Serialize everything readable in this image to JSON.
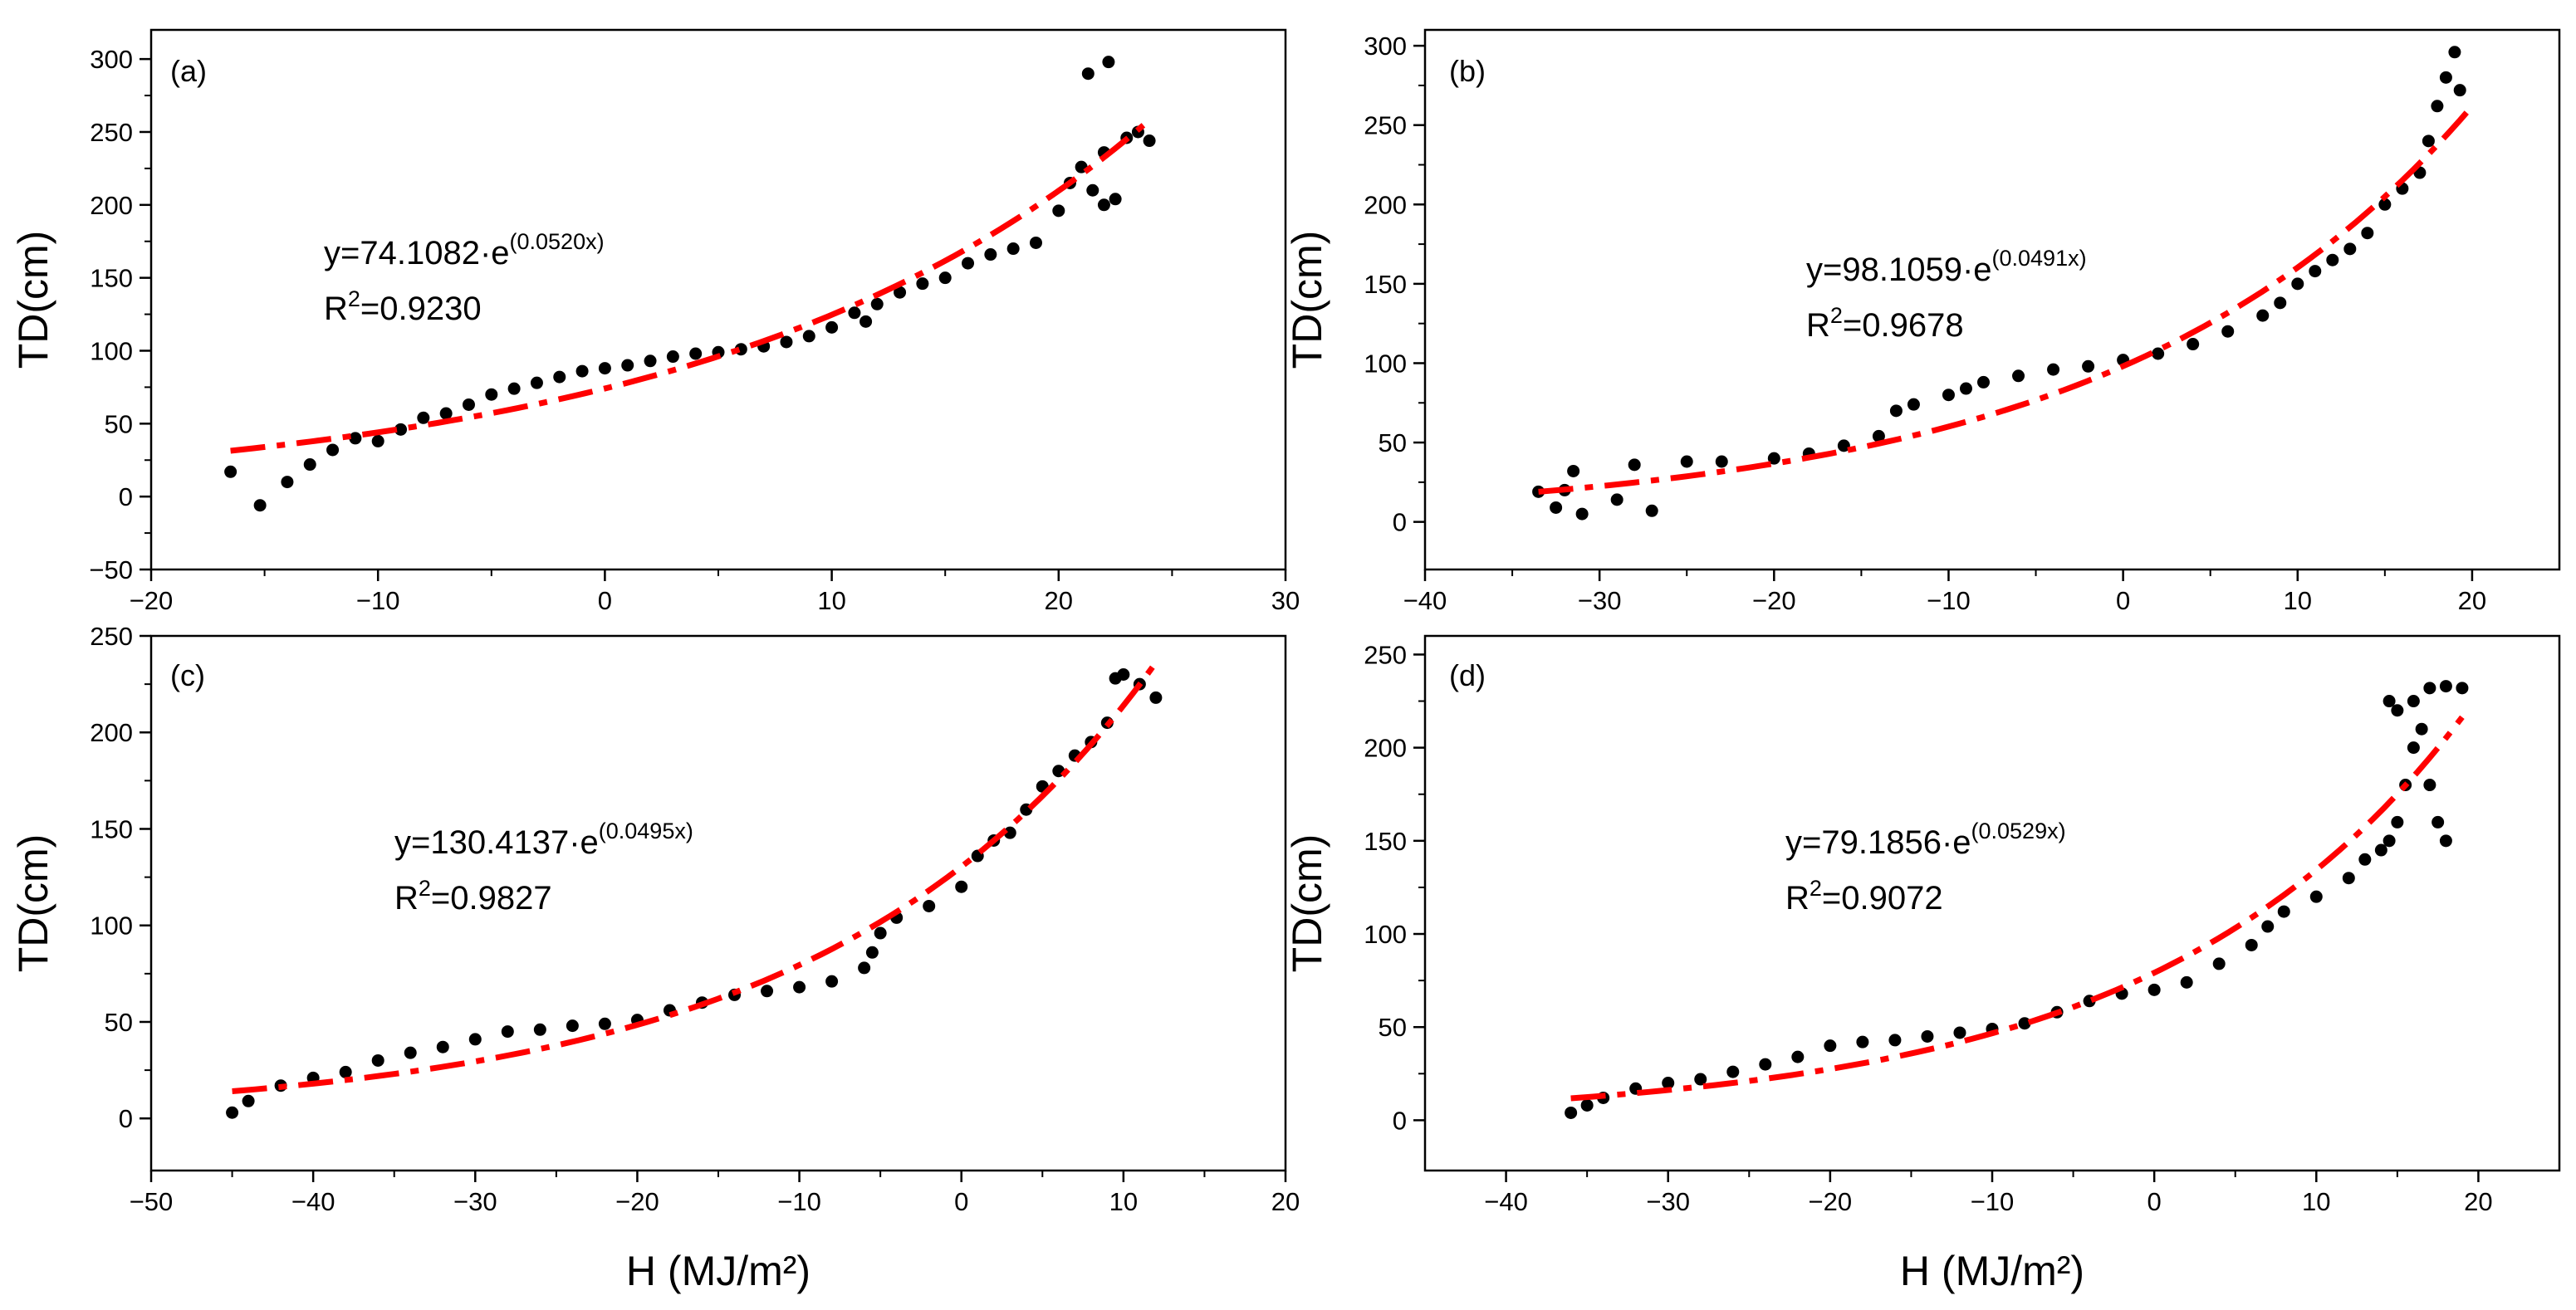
{
  "figure": {
    "shared_xlabel": "H (MJ/m²)",
    "colors": {
      "points": "#000000",
      "fit": "#ff0000",
      "axes": "#000000",
      "background": "#ffffff"
    }
  },
  "chart_data": [
    {
      "type": "scatter",
      "panel_label": "(a)",
      "title": "",
      "xlabel": "",
      "ylabel": "TD(cm)",
      "xlim": [
        -20,
        30
      ],
      "ylim": [
        -50,
        320
      ],
      "xticks": [
        -20,
        -10,
        0,
        10,
        20,
        30
      ],
      "yticks": [
        -50,
        0,
        50,
        100,
        150,
        200,
        250,
        300
      ],
      "xtick_labels": [
        "−20",
        "−10",
        "0",
        "10",
        "20",
        "30"
      ],
      "ytick_labels": [
        "−50",
        "0",
        "50",
        "100",
        "150",
        "200",
        "250",
        "300"
      ],
      "fit": {
        "a": 74.1082,
        "b": 0.052,
        "x_range": [
          -16.5,
          24
        ],
        "style": "dash-dot"
      },
      "equation": {
        "prefix": "y=74.1082·e",
        "exponent": "(0.0520x)"
      },
      "r2": {
        "label": "R",
        "sup": "2",
        "value": "=0.9230"
      },
      "points": [
        [
          -16.5,
          17
        ],
        [
          -15.2,
          -6
        ],
        [
          -14,
          10
        ],
        [
          -13,
          22
        ],
        [
          -12,
          32
        ],
        [
          -11,
          40
        ],
        [
          -10,
          38
        ],
        [
          -9,
          46
        ],
        [
          -8,
          54
        ],
        [
          -7,
          57
        ],
        [
          -6,
          63
        ],
        [
          -5,
          70
        ],
        [
          -4,
          74
        ],
        [
          -3,
          78
        ],
        [
          -2,
          82
        ],
        [
          -1,
          86
        ],
        [
          0,
          88
        ],
        [
          1,
          90
        ],
        [
          2,
          93
        ],
        [
          3,
          96
        ],
        [
          4,
          98
        ],
        [
          5,
          99
        ],
        [
          6,
          101
        ],
        [
          7,
          103
        ],
        [
          8,
          106
        ],
        [
          9,
          110
        ],
        [
          10,
          116
        ],
        [
          11,
          126
        ],
        [
          11.5,
          120
        ],
        [
          12,
          132
        ],
        [
          13,
          140
        ],
        [
          14,
          146
        ],
        [
          15,
          150
        ],
        [
          16,
          160
        ],
        [
          17,
          166
        ],
        [
          18,
          170
        ],
        [
          19,
          174
        ],
        [
          20,
          196
        ],
        [
          20.5,
          215
        ],
        [
          21,
          226
        ],
        [
          21.3,
          290
        ],
        [
          21.5,
          210
        ],
        [
          22,
          200
        ],
        [
          22,
          236
        ],
        [
          22.2,
          298
        ],
        [
          22.5,
          204
        ],
        [
          23,
          246
        ],
        [
          23.5,
          250
        ],
        [
          24,
          244
        ]
      ]
    },
    {
      "type": "scatter",
      "panel_label": "(b)",
      "title": "",
      "xlabel": "",
      "ylabel": "TD(cm)",
      "xlim": [
        -40,
        25
      ],
      "ylim": [
        -30,
        310
      ],
      "xticks": [
        -40,
        -30,
        -20,
        -10,
        0,
        10,
        20
      ],
      "yticks": [
        0,
        50,
        100,
        150,
        200,
        250,
        300
      ],
      "xtick_labels": [
        "−40",
        "−30",
        "−20",
        "−10",
        "0",
        "10",
        "20"
      ],
      "ytick_labels": [
        "0",
        "50",
        "100",
        "150",
        "200",
        "250",
        "300"
      ],
      "fit": {
        "a": 98.1059,
        "b": 0.0491,
        "x_range": [
          -33.5,
          20
        ],
        "style": "dash-dot"
      },
      "equation": {
        "prefix": "y=98.1059·e",
        "exponent": "(0.0491x)"
      },
      "r2": {
        "label": "R",
        "sup": "2",
        "value": "=0.9678"
      },
      "points": [
        [
          -33.5,
          19
        ],
        [
          -32.5,
          9
        ],
        [
          -32,
          20
        ],
        [
          -31.5,
          32
        ],
        [
          -31,
          5
        ],
        [
          -29,
          14
        ],
        [
          -28,
          36
        ],
        [
          -27,
          7
        ],
        [
          -25,
          38
        ],
        [
          -23,
          38
        ],
        [
          -20,
          40
        ],
        [
          -18,
          43
        ],
        [
          -16,
          48
        ],
        [
          -14,
          54
        ],
        [
          -13,
          70
        ],
        [
          -12,
          74
        ],
        [
          -10,
          80
        ],
        [
          -9,
          84
        ],
        [
          -8,
          88
        ],
        [
          -6,
          92
        ],
        [
          -4,
          96
        ],
        [
          -2,
          98
        ],
        [
          0,
          102
        ],
        [
          2,
          106
        ],
        [
          4,
          112
        ],
        [
          6,
          120
        ],
        [
          8,
          130
        ],
        [
          9,
          138
        ],
        [
          10,
          150
        ],
        [
          11,
          158
        ],
        [
          12,
          165
        ],
        [
          13,
          172
        ],
        [
          14,
          182
        ],
        [
          15,
          200
        ],
        [
          16,
          210
        ],
        [
          17,
          220
        ],
        [
          17.5,
          240
        ],
        [
          18,
          262
        ],
        [
          18.5,
          280
        ],
        [
          19,
          296
        ],
        [
          19.3,
          272
        ]
      ]
    },
    {
      "type": "scatter",
      "panel_label": "(c)",
      "title": "",
      "xlabel": "",
      "ylabel": "TD(cm)",
      "xlim": [
        -50,
        20
      ],
      "ylim": [
        -27,
        250
      ],
      "xticks": [
        -50,
        -40,
        -30,
        -20,
        -10,
        0,
        10,
        20
      ],
      "yticks": [
        0,
        50,
        100,
        150,
        200,
        250
      ],
      "xtick_labels": [
        "−50",
        "−40",
        "−30",
        "−20",
        "−10",
        "0",
        "10",
        "20"
      ],
      "ytick_labels": [
        "0",
        "50",
        "100",
        "150",
        "200",
        "250"
      ],
      "fit": {
        "a": 130.4137,
        "b": 0.0495,
        "x_range": [
          -45,
          12
        ],
        "style": "dash-dot"
      },
      "equation": {
        "prefix": "y=130.4137·e",
        "exponent": "(0.0495x)"
      },
      "r2": {
        "label": "R",
        "sup": "2",
        "value": "=0.9827"
      },
      "points": [
        [
          -45,
          3
        ],
        [
          -44,
          9
        ],
        [
          -42,
          17
        ],
        [
          -40,
          21
        ],
        [
          -38,
          24
        ],
        [
          -36,
          30
        ],
        [
          -34,
          34
        ],
        [
          -32,
          37
        ],
        [
          -30,
          41
        ],
        [
          -28,
          45
        ],
        [
          -26,
          46
        ],
        [
          -24,
          48
        ],
        [
          -22,
          49
        ],
        [
          -20,
          51
        ],
        [
          -18,
          56
        ],
        [
          -16,
          60
        ],
        [
          -14,
          64
        ],
        [
          -12,
          66
        ],
        [
          -10,
          68
        ],
        [
          -8,
          71
        ],
        [
          -6,
          78
        ],
        [
          -5.5,
          86
        ],
        [
          -5,
          96
        ],
        [
          -4,
          104
        ],
        [
          -2,
          110
        ],
        [
          0,
          120
        ],
        [
          1,
          136
        ],
        [
          2,
          144
        ],
        [
          3,
          148
        ],
        [
          4,
          160
        ],
        [
          5,
          172
        ],
        [
          6,
          180
        ],
        [
          7,
          188
        ],
        [
          8,
          195
        ],
        [
          9,
          205
        ],
        [
          9.5,
          228
        ],
        [
          10,
          230
        ],
        [
          11,
          225
        ],
        [
          12,
          218
        ]
      ]
    },
    {
      "type": "scatter",
      "panel_label": "(d)",
      "title": "",
      "xlabel": "",
      "ylabel": "TD(cm)",
      "xlim": [
        -45,
        25
      ],
      "ylim": [
        -27,
        260
      ],
      "xticks": [
        -40,
        -30,
        -20,
        -10,
        0,
        10,
        20
      ],
      "yticks": [
        0,
        50,
        100,
        150,
        200,
        250
      ],
      "xtick_labels": [
        "−40",
        "−30",
        "−20",
        "−10",
        "0",
        "10",
        "20"
      ],
      "ytick_labels": [
        "0",
        "50",
        "100",
        "150",
        "200",
        "250"
      ],
      "fit": {
        "a": 79.1856,
        "b": 0.0529,
        "x_range": [
          -36,
          19
        ],
        "style": "dash-dot"
      },
      "equation": {
        "prefix": "y=79.1856·e",
        "exponent": "(0.0529x)"
      },
      "r2": {
        "label": "R",
        "sup": "2",
        "value": "=0.9072"
      },
      "points": [
        [
          -36,
          4
        ],
        [
          -35,
          8
        ],
        [
          -34,
          12
        ],
        [
          -32,
          17
        ],
        [
          -30,
          20
        ],
        [
          -28,
          22
        ],
        [
          -26,
          26
        ],
        [
          -24,
          30
        ],
        [
          -22,
          34
        ],
        [
          -20,
          40
        ],
        [
          -18,
          42
        ],
        [
          -16,
          43
        ],
        [
          -14,
          45
        ],
        [
          -12,
          47
        ],
        [
          -10,
          49
        ],
        [
          -8,
          52
        ],
        [
          -6,
          58
        ],
        [
          -4,
          64
        ],
        [
          -2,
          68
        ],
        [
          0,
          70
        ],
        [
          2,
          74
        ],
        [
          4,
          84
        ],
        [
          6,
          94
        ],
        [
          7,
          104
        ],
        [
          8,
          112
        ],
        [
          10,
          120
        ],
        [
          12,
          130
        ],
        [
          13,
          140
        ],
        [
          14,
          145
        ],
        [
          14.5,
          150
        ],
        [
          15,
          160
        ],
        [
          15.5,
          180
        ],
        [
          16,
          200
        ],
        [
          16.5,
          210
        ],
        [
          17,
          180
        ],
        [
          17.5,
          160
        ],
        [
          18,
          150
        ],
        [
          14.5,
          225
        ],
        [
          15,
          220
        ],
        [
          16,
          225
        ],
        [
          17,
          232
        ],
        [
          18,
          233
        ],
        [
          19,
          232
        ]
      ]
    }
  ]
}
